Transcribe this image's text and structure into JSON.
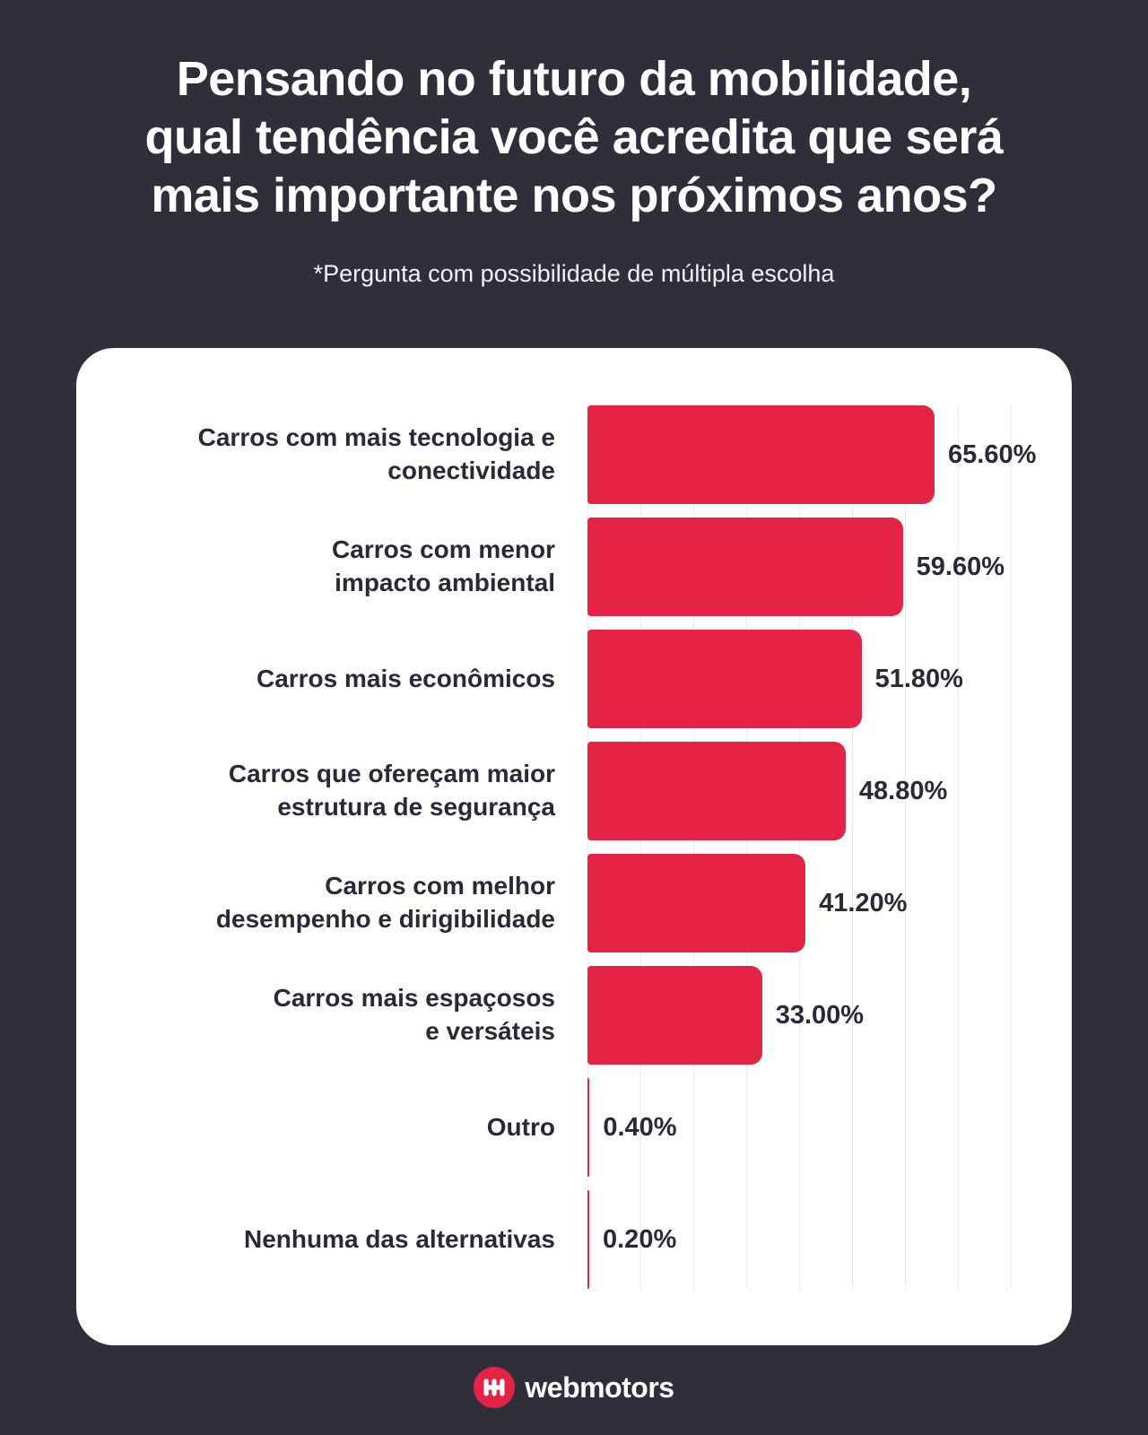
{
  "theme": {
    "background": "#2f2e3a",
    "card_background": "#ffffff",
    "accent_red": "#e52346",
    "text_dark": "#2a2937",
    "text_light": "#ffffff",
    "gridline_color": "#e9e9ee"
  },
  "header": {
    "title": "Pensando no futuro da mobilidade,\nqual tendência você acredita que será\nmais importante nos próximos anos?",
    "subtitle": "*Pergunta com possibilidade de múltipla escolha"
  },
  "chart_data": {
    "type": "bar",
    "orientation": "horizontal",
    "title": "",
    "xlabel": "",
    "ylabel": "",
    "xlim": [
      0,
      80
    ],
    "grid": true,
    "grid_step": 10,
    "legend": false,
    "bar_color": "#e52346",
    "categories": [
      "Carros com mais tecnologia e conectividade",
      "Carros com menor impacto ambiental",
      "Carros mais econômicos",
      "Carros que ofereçam maior estrutura de segurança",
      "Carros com melhor desempenho e dirigibilidade",
      "Carros mais espaçosos e versáteis",
      "Outro",
      "Nenhuma das alternativas"
    ],
    "label_lines": [
      [
        "Carros com mais tecnologia e",
        "conectividade"
      ],
      [
        "Carros com menor",
        "impacto ambiental"
      ],
      [
        "Carros mais econômicos"
      ],
      [
        "Carros que ofereçam maior",
        "estrutura de segurança"
      ],
      [
        "Carros com melhor",
        "desempenho e dirigibilidade"
      ],
      [
        "Carros mais espaçosos",
        "e versáteis"
      ],
      [
        "Outro"
      ],
      [
        "Nenhuma das alternativas"
      ]
    ],
    "values": [
      65.6,
      59.6,
      51.8,
      48.8,
      41.2,
      33.0,
      0.4,
      0.2
    ],
    "value_labels": [
      "65.60%",
      "59.60%",
      "51.80%",
      "48.80%",
      "41.20%",
      "33.00%",
      "0.40%",
      "0.20%"
    ]
  },
  "footer": {
    "brand": "webmotors",
    "logo_icon": "webmotors-hh-icon"
  }
}
